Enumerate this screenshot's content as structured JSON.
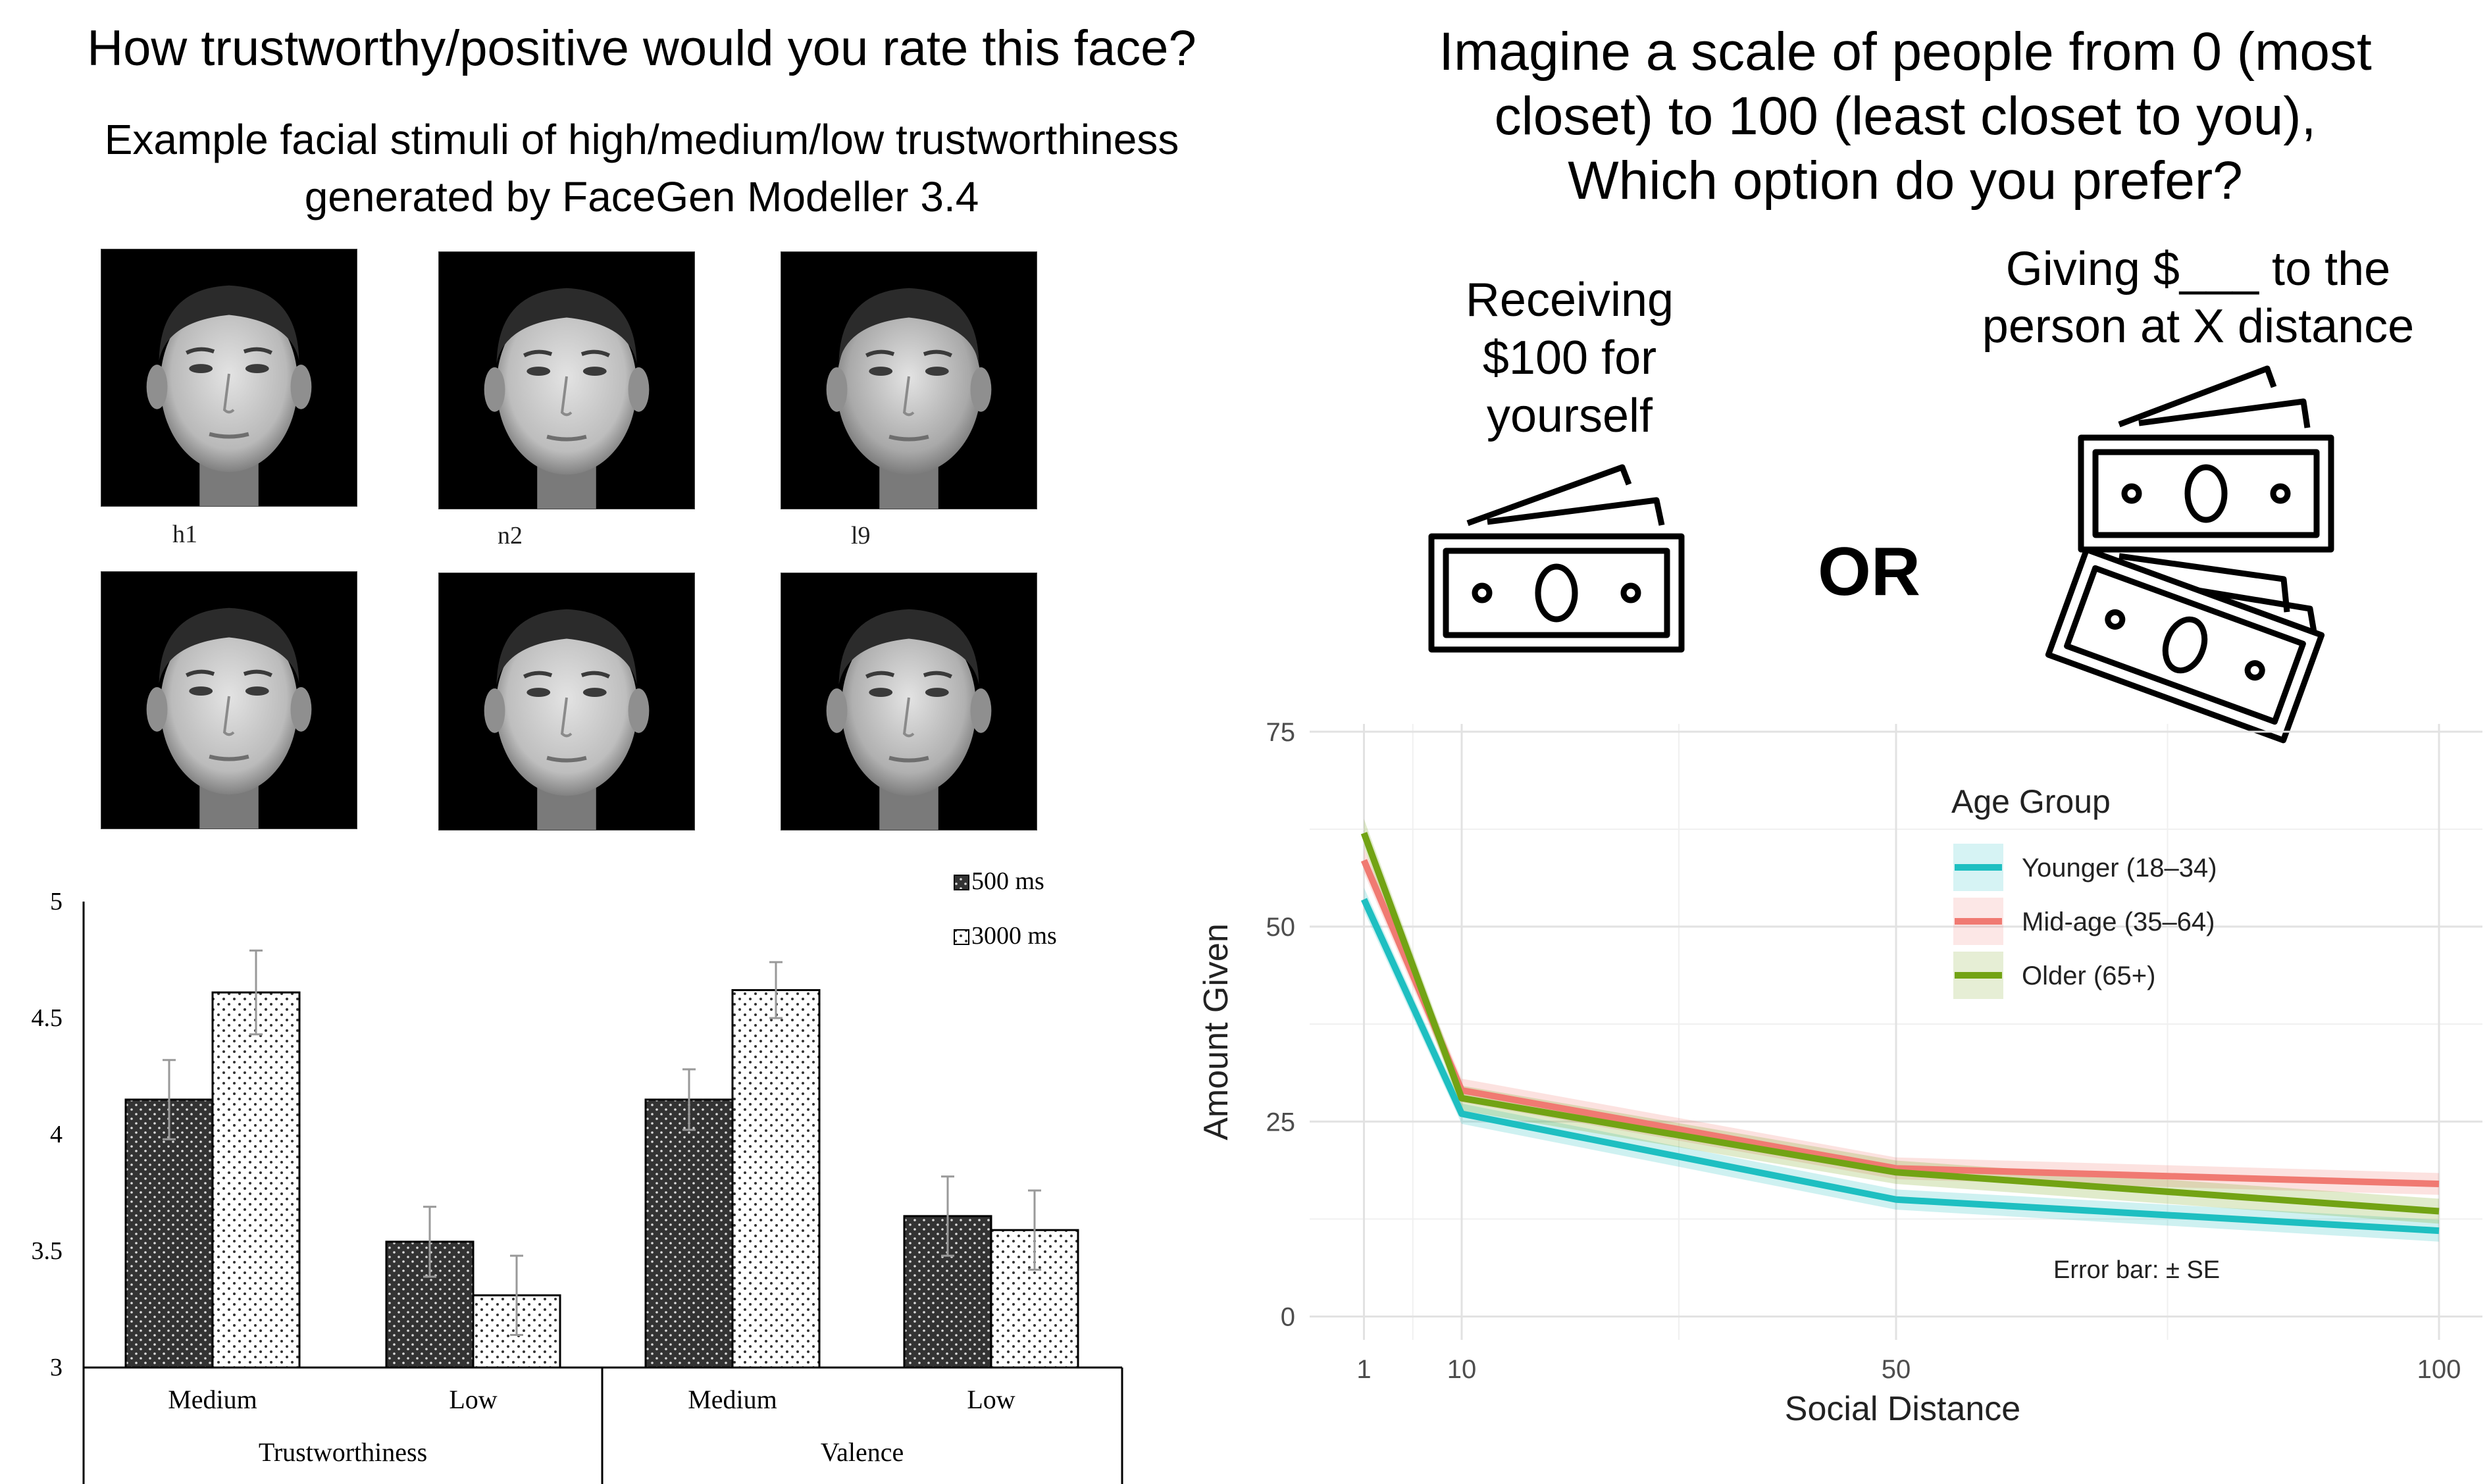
{
  "left_panel": {
    "question": "How trustworthy/positive would you rate this face?",
    "caption_line1": "Example facial stimuli of high/medium/low trustworthiness",
    "caption_line2": "generated by FaceGen Modeller 3.4",
    "face_labels": [
      "h1",
      "n2",
      "l9"
    ]
  },
  "right_panel": {
    "question_line1": "Imagine a scale of people from 0 (most",
    "question_line2": "closet) to 100 (least closet to you),",
    "question_line3": "Which option do you prefer?",
    "option_a_line1": "Receiving",
    "option_a_line2": "$100 for",
    "option_a_line3": "yourself",
    "or_label": "OR",
    "option_b_line1": "Giving $___ to the",
    "option_b_line2": "person at X distance"
  },
  "chart_data": [
    {
      "type": "bar",
      "ylim": [
        3,
        5
      ],
      "yticks": [
        "3",
        "3.5",
        "4",
        "4.5",
        "5"
      ],
      "groups": [
        {
          "name": "Trustworthiness",
          "categories": [
            "Medium",
            "Low"
          ]
        },
        {
          "name": "Valence",
          "categories": [
            "Medium",
            "Low"
          ]
        }
      ],
      "categories": [
        "Medium",
        "Low",
        "Medium",
        "Low"
      ],
      "series": [
        {
          "name": "500 ms",
          "values": [
            4.15,
            3.54,
            4.15,
            3.65
          ],
          "errors": [
            0.17,
            0.15,
            0.13,
            0.17
          ],
          "color": "#333333"
        },
        {
          "name": "3000 ms",
          "values": [
            4.61,
            3.31,
            4.62,
            3.59
          ],
          "errors": [
            0.18,
            0.17,
            0.12,
            0.17
          ],
          "color": "#ffffff"
        }
      ],
      "legend_position": "top-right"
    },
    {
      "type": "line",
      "xlabel": "Social Distance",
      "ylabel": "Amount Given",
      "x": [
        1,
        10,
        50,
        100
      ],
      "xticks": [
        "1",
        "10",
        "50",
        "100"
      ],
      "yticks": [
        "0",
        "25",
        "50",
        "75"
      ],
      "xlim": [
        -4,
        104
      ],
      "ylim": [
        -3,
        76
      ],
      "legend_title": "Age Group",
      "legend_position": "top-right",
      "annotation": "Error bar: ± SE",
      "grid": true,
      "series": [
        {
          "name": "Younger (18–34)",
          "values": [
            53.5,
            26,
            15,
            11
          ],
          "se": [
            1.5,
            1.3,
            1.3,
            1.4
          ],
          "color": "#1ebfc1"
        },
        {
          "name": "Mid-age (35–64)",
          "values": [
            58.5,
            29,
            19,
            17
          ],
          "se": [
            1.6,
            1.5,
            1.4,
            1.4
          ],
          "color": "#f07a72"
        },
        {
          "name": "Older (65+)",
          "values": [
            62,
            28,
            18.5,
            13.5
          ],
          "se": [
            1.8,
            1.6,
            1.5,
            1.6
          ],
          "color": "#72a314"
        }
      ]
    }
  ]
}
